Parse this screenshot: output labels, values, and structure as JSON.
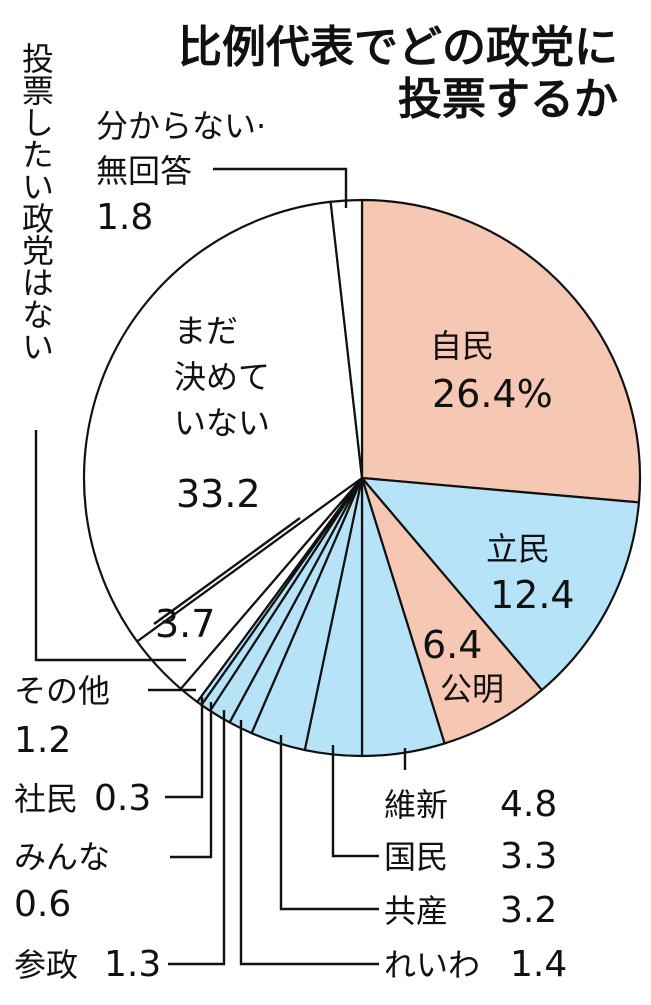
{
  "chart_data": {
    "type": "pie",
    "title": [
      "比例代表でどの政党に",
      "投票するか"
    ],
    "unit_suffix": "%",
    "colors": {
      "ldp": "#f6c7b3",
      "komeito": "#f6c7b3",
      "opposition": "#b6e3f7",
      "other": "#ffffff",
      "outline": "#111111"
    },
    "slices": [
      {
        "key": "jimin",
        "name": "自民",
        "value": 26.4,
        "display": "26.4%",
        "color": "ldp"
      },
      {
        "key": "rikken",
        "name": "立民",
        "value": 12.4,
        "display": "12.4",
        "color": "opposition"
      },
      {
        "key": "komei",
        "name": "公明",
        "value": 6.4,
        "display": "6.4",
        "color": "komeito"
      },
      {
        "key": "ishin",
        "name": "維新",
        "value": 4.8,
        "display": "4.8",
        "color": "opposition"
      },
      {
        "key": "kokumin",
        "name": "国民",
        "value": 3.3,
        "display": "3.3",
        "color": "opposition"
      },
      {
        "key": "kyosan",
        "name": "共産",
        "value": 3.2,
        "display": "3.2",
        "color": "opposition"
      },
      {
        "key": "reiwa",
        "name": "れいわ",
        "value": 1.4,
        "display": "1.4",
        "color": "opposition"
      },
      {
        "key": "sansei",
        "name": "参政",
        "value": 1.3,
        "display": "1.3",
        "color": "opposition"
      },
      {
        "key": "minna",
        "name": "みんな",
        "value": 0.6,
        "display": "0.6",
        "color": "opposition"
      },
      {
        "key": "shamin",
        "name": "社民",
        "value": 0.3,
        "display": "0.3",
        "color": "opposition"
      },
      {
        "key": "sonota",
        "name": "その他",
        "value": 1.2,
        "display": "1.2",
        "color": "other"
      },
      {
        "key": "nashi",
        "name": "投票したい政党はない",
        "value": 3.7,
        "display": "3.7",
        "color": "other"
      },
      {
        "key": "mada",
        "name": "まだ決めていない",
        "name_lines": [
          "まだ",
          "決めて",
          "いない"
        ],
        "value": 33.2,
        "display": "33.2",
        "color": "other"
      },
      {
        "key": "wakaranai",
        "name": "分からない・無回答",
        "name_lines": [
          "分からない·",
          "無回答"
        ],
        "value": 1.8,
        "display": "1.8",
        "color": "other"
      }
    ]
  }
}
